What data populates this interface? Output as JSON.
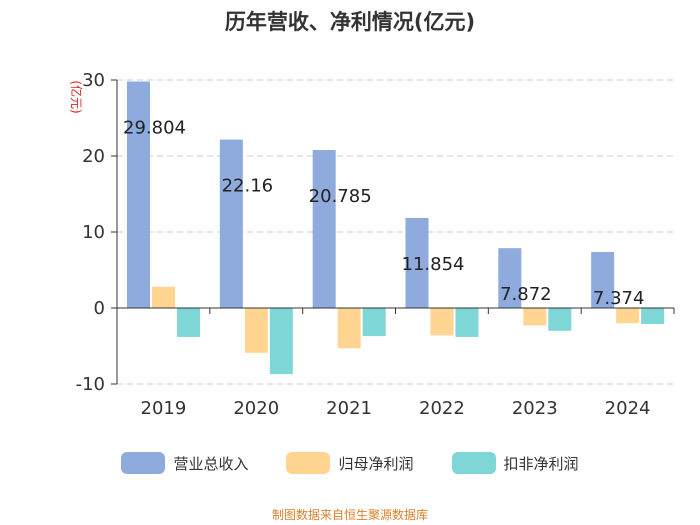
{
  "chart_data": {
    "type": "bar",
    "title": "历年营收、净利情况(亿元)",
    "xlabel": "",
    "ylabel": "(亿元)",
    "ylim": [
      -10,
      30
    ],
    "yticks": [
      -10,
      0,
      10,
      20,
      30
    ],
    "grid": true,
    "legend_position": "bottom",
    "categories": [
      "2019",
      "2020",
      "2021",
      "2022",
      "2023",
      "2024"
    ],
    "series": [
      {
        "name": "营业总收入",
        "color": "#8faadc",
        "values": [
          29.804,
          22.16,
          20.785,
          11.854,
          7.872,
          7.374
        ],
        "labels": [
          "29.804",
          "22.16",
          "20.785",
          "11.854",
          "7.872",
          "7.374"
        ]
      },
      {
        "name": "归母净利润",
        "color": "#ffd591",
        "values": [
          2.8,
          -5.9,
          -5.3,
          -3.6,
          -2.3,
          -2.0
        ]
      },
      {
        "name": "扣非净利润",
        "color": "#7fd6d6",
        "values": [
          -3.8,
          -8.7,
          -3.7,
          -3.8,
          -3.0,
          -2.1
        ]
      }
    ]
  },
  "source": "制图数据来自恒生聚源数据库"
}
